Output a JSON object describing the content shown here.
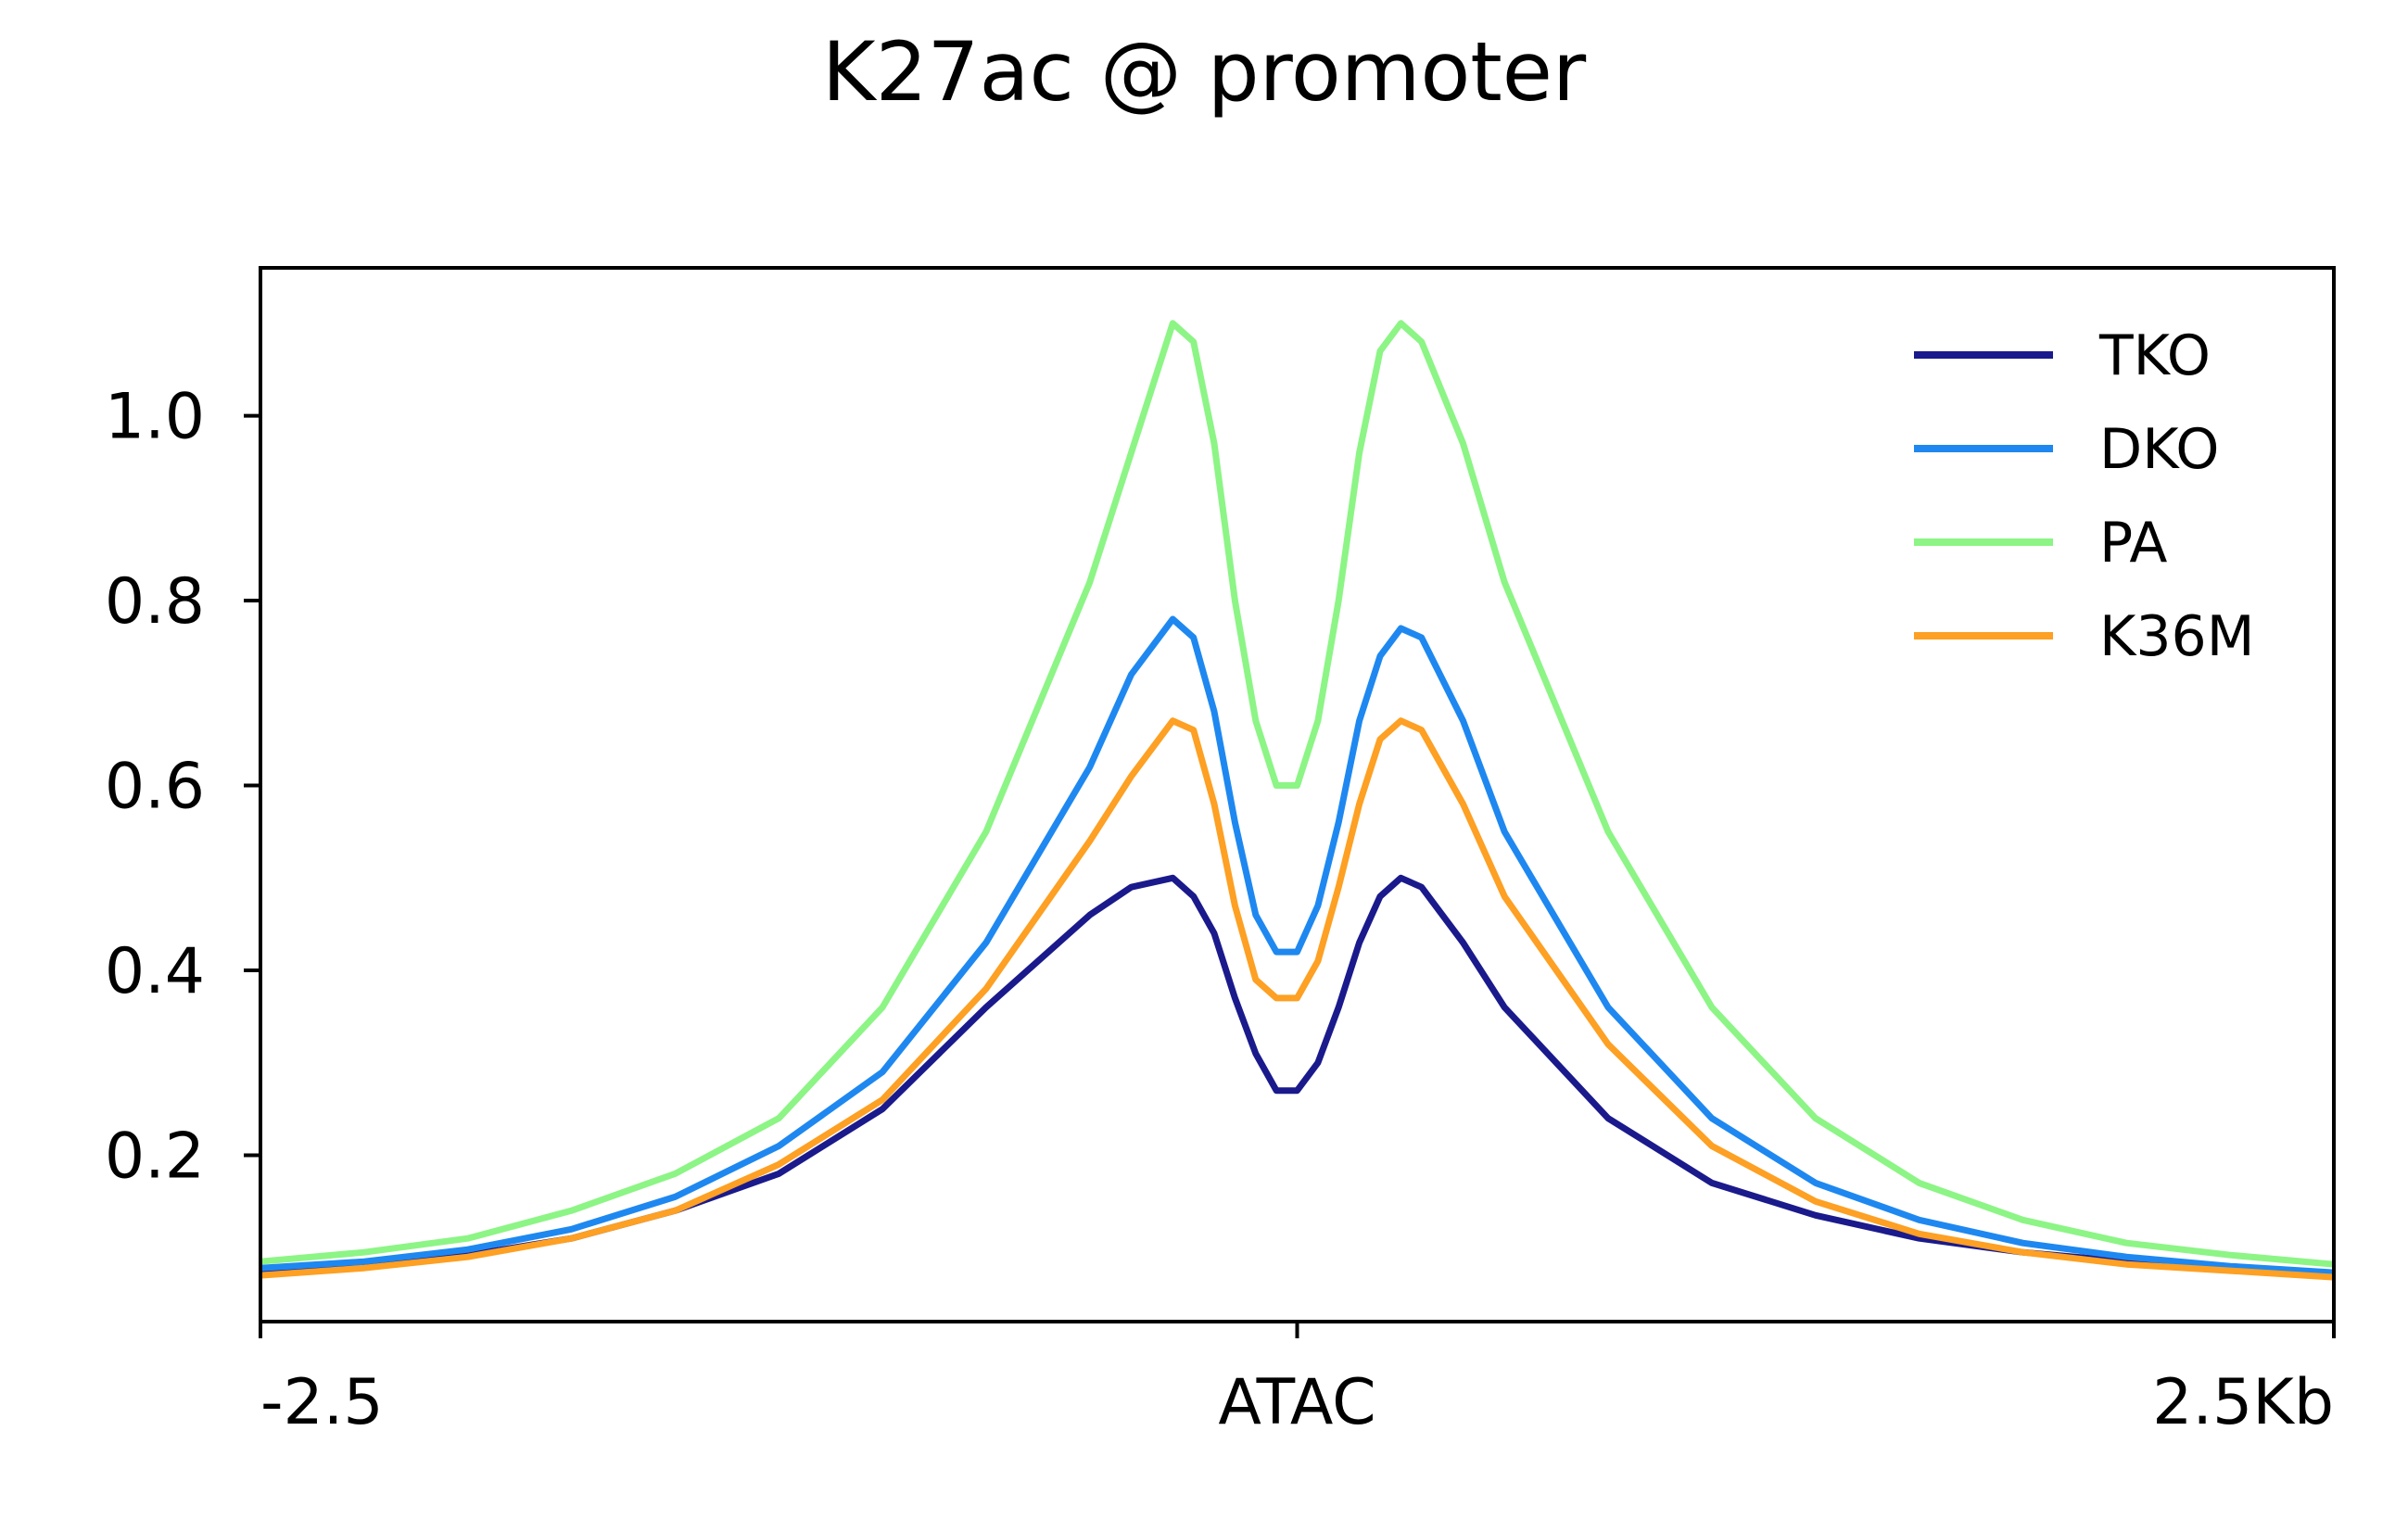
{
  "chart_data": {
    "type": "line",
    "title": "K27ac @ promoter",
    "xlabel": "",
    "ylabel": "",
    "xlim": [
      -2.5,
      2.5
    ],
    "ylim": [
      0.02,
      1.16
    ],
    "x_ticks": [
      {
        "value": -2.5,
        "label": "-2.5"
      },
      {
        "value": 0,
        "label": "ATAC"
      },
      {
        "value": 2.5,
        "label": "2.5Kb"
      }
    ],
    "y_ticks": [
      {
        "value": 0.2,
        "label": "0.2"
      },
      {
        "value": 0.4,
        "label": "0.4"
      },
      {
        "value": 0.6,
        "label": "0.6"
      },
      {
        "value": 0.8,
        "label": "0.8"
      },
      {
        "value": 1.0,
        "label": "1.0"
      }
    ],
    "grid": false,
    "legend_position": "top-right",
    "x": [
      -2.5,
      -2.25,
      -2.0,
      -1.75,
      -1.5,
      -1.25,
      -1.0,
      -0.75,
      -0.5,
      -0.4,
      -0.3,
      -0.25,
      -0.2,
      -0.15,
      -0.1,
      -0.05,
      0.0,
      0.05,
      0.1,
      0.15,
      0.2,
      0.25,
      0.3,
      0.4,
      0.5,
      0.75,
      1.0,
      1.25,
      1.5,
      1.75,
      2.0,
      2.25,
      2.5
    ],
    "series": [
      {
        "name": "TKO",
        "color": "#1a1a8c",
        "values": [
          0.075,
          0.082,
          0.092,
          0.11,
          0.14,
          0.18,
          0.25,
          0.36,
          0.46,
          0.49,
          0.5,
          0.48,
          0.44,
          0.37,
          0.31,
          0.27,
          0.27,
          0.3,
          0.36,
          0.43,
          0.48,
          0.5,
          0.49,
          0.43,
          0.36,
          0.24,
          0.17,
          0.135,
          0.11,
          0.095,
          0.085,
          0.078,
          0.072
        ]
      },
      {
        "name": "DKO",
        "color": "#1e88f0",
        "values": [
          0.078,
          0.085,
          0.098,
          0.12,
          0.155,
          0.21,
          0.29,
          0.43,
          0.62,
          0.72,
          0.78,
          0.76,
          0.68,
          0.56,
          0.46,
          0.42,
          0.42,
          0.47,
          0.56,
          0.67,
          0.74,
          0.77,
          0.76,
          0.67,
          0.55,
          0.36,
          0.24,
          0.17,
          0.13,
          0.105,
          0.09,
          0.08,
          0.073
        ]
      },
      {
        "name": "PA",
        "color": "#8cf585",
        "values": [
          0.085,
          0.095,
          0.11,
          0.14,
          0.18,
          0.24,
          0.36,
          0.55,
          0.82,
          0.96,
          1.1,
          1.08,
          0.97,
          0.8,
          0.67,
          0.6,
          0.6,
          0.67,
          0.8,
          0.96,
          1.07,
          1.1,
          1.08,
          0.97,
          0.82,
          0.55,
          0.36,
          0.24,
          0.17,
          0.13,
          0.105,
          0.092,
          0.082
        ]
      },
      {
        "name": "K36M",
        "color": "#fda023",
        "values": [
          0.07,
          0.078,
          0.09,
          0.11,
          0.14,
          0.19,
          0.26,
          0.38,
          0.54,
          0.61,
          0.67,
          0.66,
          0.58,
          0.47,
          0.39,
          0.37,
          0.37,
          0.41,
          0.49,
          0.58,
          0.65,
          0.67,
          0.66,
          0.58,
          0.48,
          0.32,
          0.21,
          0.15,
          0.115,
          0.095,
          0.082,
          0.075,
          0.068
        ]
      }
    ]
  }
}
